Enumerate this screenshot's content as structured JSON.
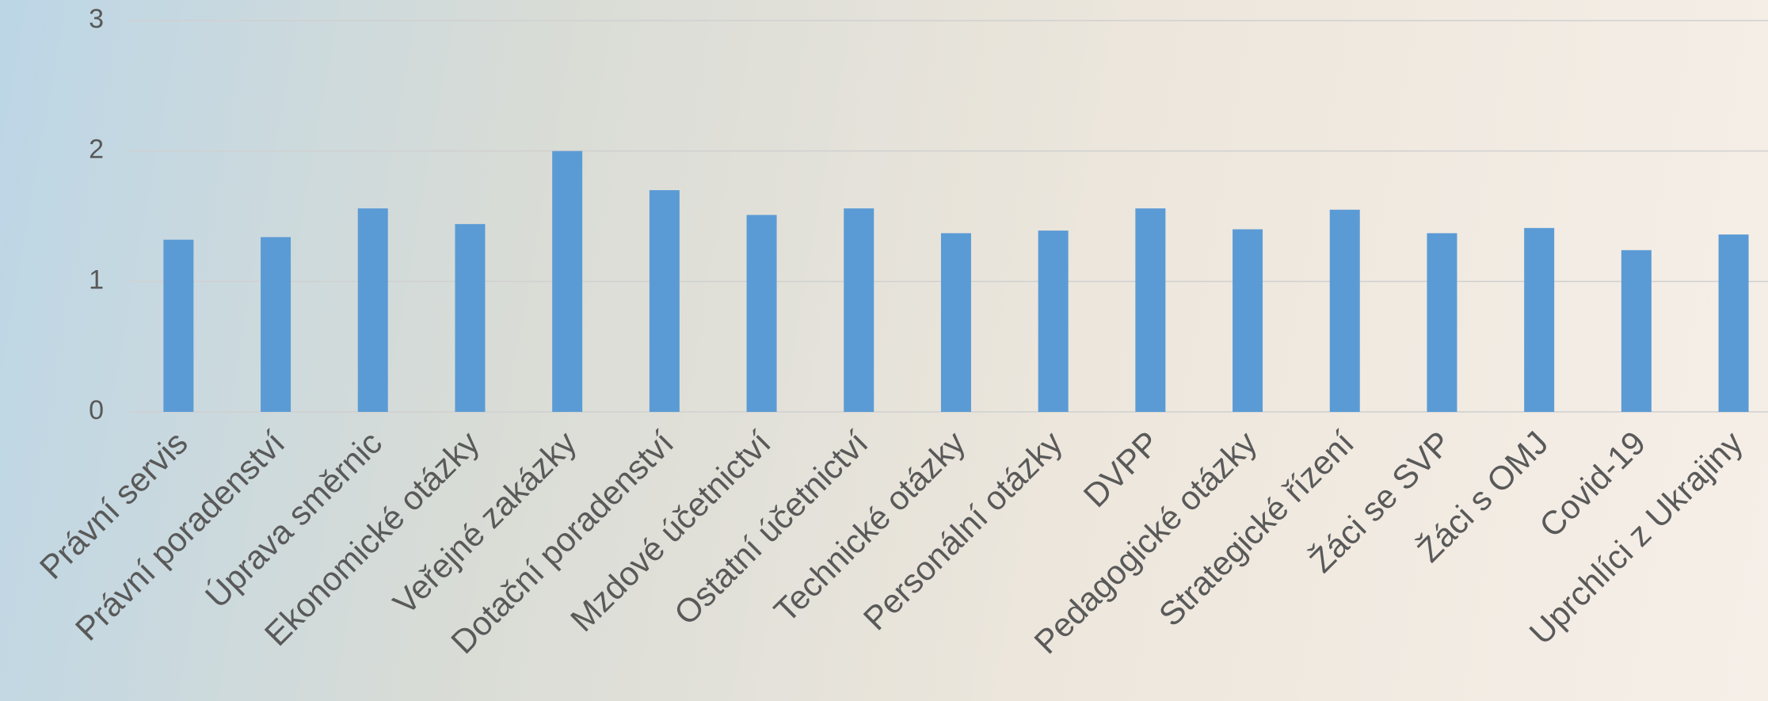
{
  "chart_data": {
    "type": "bar",
    "categories": [
      "Právní servis",
      "Právní poradenství",
      "Úprava směrnic",
      "Ekonomické otázky",
      "Veřejné zakázky",
      "Dotační poradenství",
      "Mzdové účetnictví",
      "Ostatní účetnictví",
      "Technické otázky",
      "Personální otázky",
      "DVPP",
      "Pedagogické otázky",
      "Strategické řízení",
      "Žáci se SVP",
      "Žáci s OMJ",
      "Covid-19",
      "Uprchlíci z Ukrajiny"
    ],
    "values": [
      1.32,
      1.34,
      1.56,
      1.44,
      2.0,
      1.7,
      1.51,
      1.56,
      1.37,
      1.39,
      1.56,
      1.4,
      1.55,
      1.37,
      1.41,
      1.24,
      1.36
    ],
    "color": "#5b9bd5",
    "ylim": [
      0,
      3
    ],
    "yticks": [
      0,
      1,
      2,
      3
    ],
    "grid": true
  }
}
